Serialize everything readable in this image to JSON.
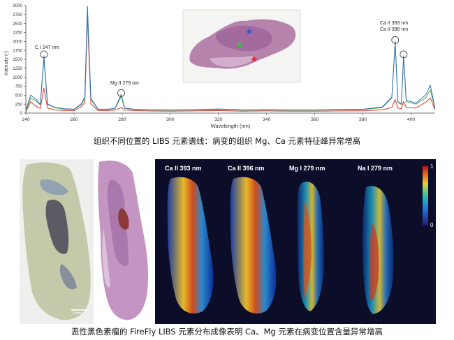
{
  "chart_data": {
    "type": "line",
    "xlabel": "Wavelength (nm)",
    "ylabel": "Intensity (-)",
    "xlim": [
      240,
      410
    ],
    "ylim": [
      0,
      3000
    ],
    "x_ticks": [
      "240",
      "260",
      "280",
      "300",
      "320",
      "340",
      "360",
      "380",
      "400"
    ],
    "y_ticks": [
      "0",
      "250",
      "500",
      "750",
      "1000",
      "1250",
      "1500",
      "1750",
      "2000",
      "2250",
      "2500",
      "2750",
      "3000"
    ],
    "series": [
      {
        "color": "#3a6fb5",
        "x": [
          240,
          242,
          244,
          246,
          247.5,
          249,
          252,
          256,
          260,
          263,
          264.5,
          265.6,
          267,
          270,
          274,
          277,
          279.6,
          281,
          285,
          290,
          300,
          310,
          320,
          330,
          340,
          350,
          360,
          370,
          380,
          388,
          392,
          393.4,
          394.5,
          396,
          396.9,
          398,
          402,
          406,
          408,
          410
        ],
        "y": [
          80,
          500,
          400,
          250,
          1600,
          260,
          160,
          120,
          110,
          260,
          450,
          2980,
          420,
          110,
          110,
          130,
          520,
          140,
          110,
          95,
          90,
          95,
          115,
          90,
          95,
          90,
          90,
          100,
          110,
          170,
          450,
          2000,
          320,
          260,
          1600,
          360,
          280,
          500,
          780,
          120
        ]
      },
      {
        "color": "#4caf50",
        "x": [
          240,
          242,
          244,
          246,
          247.5,
          249,
          252,
          256,
          260,
          263,
          264.5,
          265.6,
          267,
          270,
          274,
          277,
          279.6,
          281,
          285,
          290,
          300,
          310,
          320,
          330,
          340,
          350,
          360,
          370,
          380,
          388,
          392,
          393.4,
          394.5,
          396,
          396.9,
          398,
          402,
          406,
          408,
          410
        ],
        "y": [
          60,
          420,
          350,
          230,
          1500,
          240,
          150,
          110,
          100,
          240,
          400,
          2950,
          380,
          100,
          100,
          120,
          460,
          130,
          100,
          85,
          80,
          85,
          100,
          80,
          85,
          80,
          80,
          90,
          100,
          150,
          420,
          1950,
          300,
          240,
          1580,
          320,
          250,
          420,
          650,
          110
        ]
      },
      {
        "color": "#e2332b",
        "x": [
          240,
          242,
          244,
          246,
          247.5,
          249,
          252,
          256,
          260,
          263,
          264.5,
          265.6,
          267,
          270,
          274,
          277,
          279.6,
          281,
          285,
          290,
          300,
          310,
          320,
          330,
          340,
          350,
          360,
          370,
          380,
          388,
          392,
          393.4,
          394.5,
          396,
          396.9,
          398,
          402,
          406,
          408,
          410
        ],
        "y": [
          40,
          320,
          200,
          130,
          700,
          140,
          90,
          70,
          70,
          180,
          300,
          2700,
          260,
          70,
          70,
          80,
          160,
          85,
          70,
          60,
          55,
          60,
          70,
          55,
          60,
          55,
          55,
          60,
          65,
          90,
          160,
          380,
          140,
          120,
          330,
          150,
          140,
          300,
          420,
          80
        ]
      }
    ],
    "annotations": [
      "C I 247 nm",
      "Mg II 279 nm",
      "Ca II 393 nm",
      "Ca II 396 nm"
    ],
    "grid": false
  },
  "captions": {
    "spectrum": "组织不同位置的 LIBS 元素谱线：病变的组织 Mg、Ca 元素特征峰异常增高",
    "imaging": "恶性黑色素瘤的 FireFly LIBS 元素分布成像表明 Ca、Mg 元素在病变位置含量异常增高"
  },
  "imaging": {
    "panels": [
      "Ca II 393 nm",
      "Ca II 396 nm",
      "Mg I 279 nm",
      "Na I 279 nm"
    ],
    "colorbar": {
      "max": "1",
      "min": "0"
    },
    "scalebar": "3 mm"
  },
  "colors": {
    "map_bg": "#0c0d28",
    "tissue_photo": "#c7cfb2",
    "he_stain": "#c8a0c6"
  }
}
